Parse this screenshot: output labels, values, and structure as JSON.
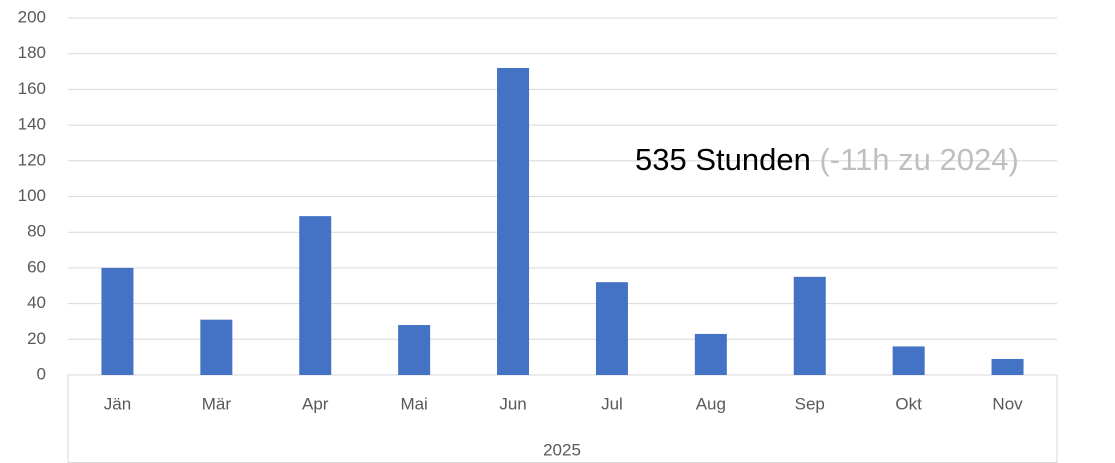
{
  "chart_data": {
    "type": "bar",
    "categories": [
      "Jän",
      "Mär",
      "Apr",
      "Mai",
      "Jun",
      "Jul",
      "Aug",
      "Sep",
      "Okt",
      "Nov"
    ],
    "group_label": "2025",
    "values": [
      60,
      31,
      89,
      28,
      172,
      52,
      23,
      55,
      16,
      9
    ],
    "color": "#4472c4",
    "ylim": [
      0,
      200
    ],
    "yticks": [
      0,
      20,
      40,
      60,
      80,
      100,
      120,
      140,
      160,
      180,
      200
    ],
    "grid": true,
    "annotation": {
      "main": "535 Stunden",
      "note": "(-11h zu 2024)"
    }
  }
}
